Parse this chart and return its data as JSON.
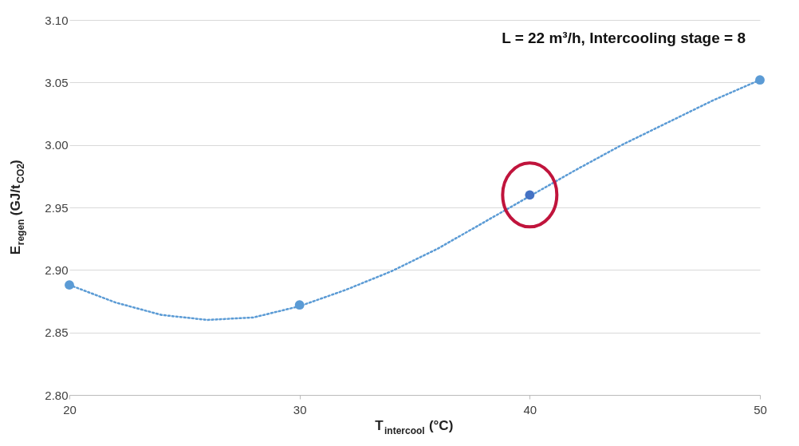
{
  "chart_data": {
    "type": "scatter",
    "xlabel": "T$_{intercool}$ (°C)",
    "ylabel": "E$_{regen}$ (GJ/t$_{CO2}$)",
    "annotations": [
      "L = 22 m³/h, Intercooling stage = 8"
    ],
    "xlim": [
      20,
      50
    ],
    "xticks": [
      20,
      30,
      40,
      50
    ],
    "ylim": [
      2.8,
      3.1
    ],
    "yticks": [
      {
        "value": 2.8,
        "label": "2.80"
      },
      2.85,
      {
        "value": 2.9,
        "label": "2.90"
      },
      2.95,
      {
        "value": 3.0,
        "label": "3.00"
      },
      3.05,
      {
        "value": 3.1,
        "label": "3.10"
      }
    ],
    "grid": "y",
    "series": [
      {
        "marker": "circle",
        "color": "#5b9bd5",
        "x": [
          20,
          30,
          40,
          50
        ],
        "values": [
          2.888,
          2.872,
          2.96,
          3.052
        ],
        "colors": [
          "#5b9bd5",
          "#5b9bd5",
          "#4472c4",
          "#5b9bd5"
        ]
      },
      {
        "type": "line",
        "marker": "none",
        "color": "#5b9bd5",
        "line_style": "dotted",
        "x": [
          20,
          22,
          24,
          26,
          28,
          30,
          32,
          34,
          36,
          38,
          40,
          42,
          44,
          46,
          48,
          50
        ],
        "values": [
          2.888,
          2.874,
          2.864,
          2.86,
          2.862,
          2.871,
          2.884,
          2.899,
          2.917,
          2.938,
          2.959,
          2.98,
          3.0,
          3.018,
          3.036,
          3.052
        ]
      }
    ]
  }
}
